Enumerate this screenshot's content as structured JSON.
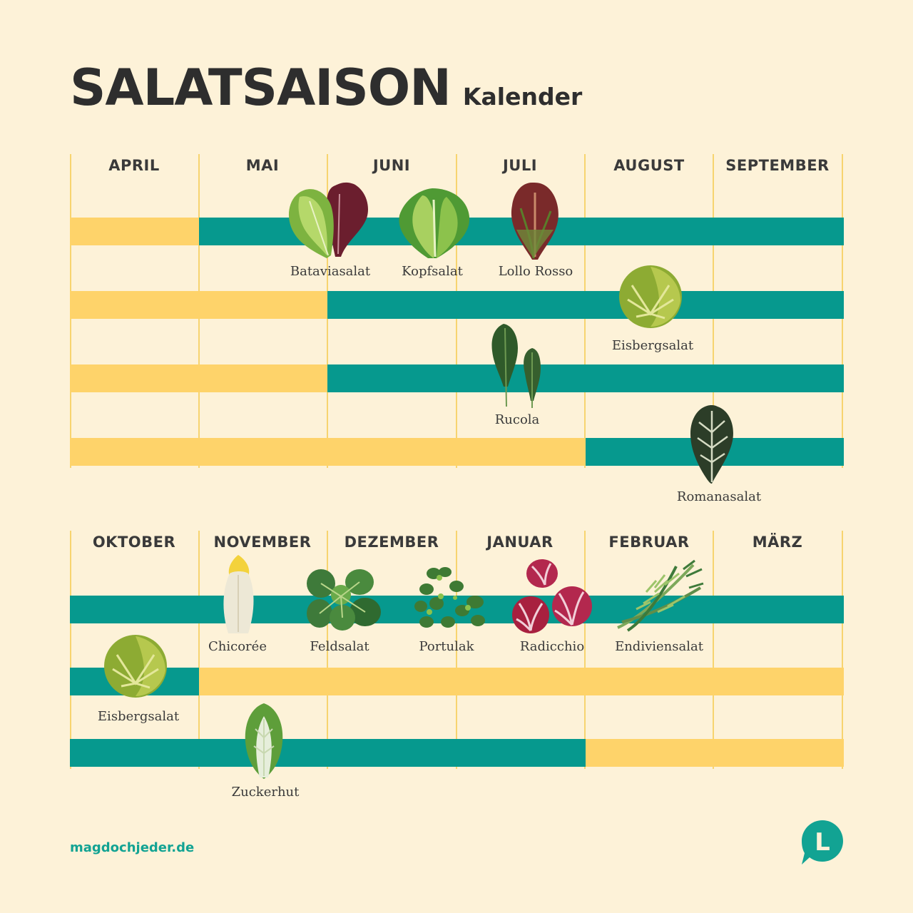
{
  "title": {
    "main": "SALATSAISON",
    "sub": "Kalender"
  },
  "colors": {
    "background": "#fdf2d8",
    "in_season": "#06998e",
    "off_season": "#fed36a",
    "grid_line": "#f7d46f",
    "text": "#2e2e2e",
    "brand": "#12a393"
  },
  "sections": [
    {
      "months": [
        "APRIL",
        "MAI",
        "JUNI",
        "JULI",
        "AUGUST",
        "SEPTEMBER"
      ],
      "rows": [
        {
          "plants": [
            "Bataviasalat",
            "Kopfsalat",
            "Lollo Rosso"
          ],
          "season": [
            0,
            1,
            1,
            1,
            1,
            1
          ]
        },
        {
          "plants": [
            "Eisbergsalat"
          ],
          "season": [
            0,
            0,
            1,
            1,
            1,
            1
          ]
        },
        {
          "plants": [
            "Rucola"
          ],
          "season": [
            0,
            0,
            1,
            1,
            1,
            1
          ]
        },
        {
          "plants": [
            "Romanasalat"
          ],
          "season": [
            0,
            0,
            0,
            0,
            1,
            1
          ]
        }
      ]
    },
    {
      "months": [
        "OKTOBER",
        "NOVEMBER",
        "DEZEMBER",
        "JANUAR",
        "FEBRUAR",
        "MÄRZ"
      ],
      "rows": [
        {
          "plants": [
            "Chicorée",
            "Feldsalat",
            "Portulak",
            "Radicchio",
            "Endiviensalat"
          ],
          "season": [
            1,
            1,
            1,
            1,
            1,
            1
          ]
        },
        {
          "plants": [
            "Eisbergsalat"
          ],
          "season": [
            1,
            0,
            0,
            0,
            0,
            0
          ]
        },
        {
          "plants": [
            "Zuckerhut"
          ],
          "season": [
            1,
            1,
            1,
            1,
            0,
            0
          ]
        }
      ]
    }
  ],
  "footer": {
    "url": "magdochjeder.de",
    "logo_letter": "L"
  },
  "icons": [
    "batavia-icon",
    "kopfsalat-icon",
    "lollo-rosso-icon",
    "eisbergsalat-icon",
    "rucola-icon",
    "romanasalat-icon",
    "chicoree-icon",
    "feldsalat-icon",
    "portulak-icon",
    "radicchio-icon",
    "endiviensalat-icon",
    "zuckerhut-icon"
  ]
}
